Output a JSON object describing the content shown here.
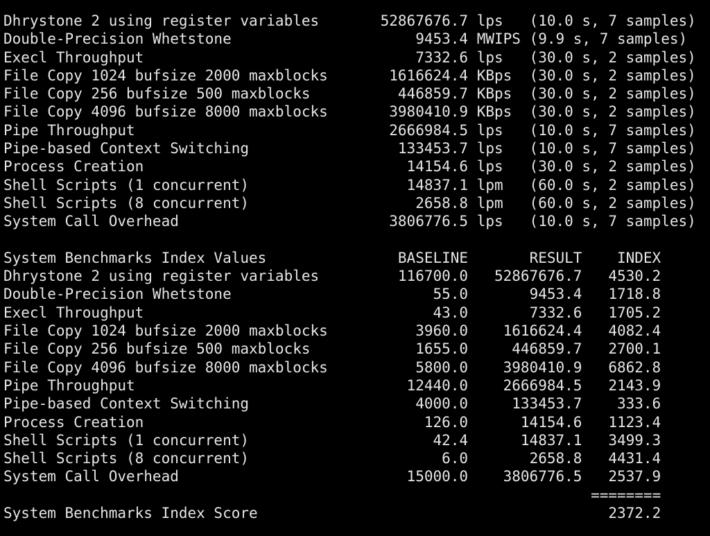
{
  "results": [
    {
      "name": "Dhrystone 2 using register variables",
      "value": "52867676.7",
      "unit": "lps",
      "detail": "(10.0 s, 7 samples)"
    },
    {
      "name": "Double-Precision Whetstone",
      "value": "9453.4",
      "unit": "MWIPS",
      "detail": "(9.9 s, 7 samples)"
    },
    {
      "name": "Execl Throughput",
      "value": "7332.6",
      "unit": "lps",
      "detail": "(30.0 s, 2 samples)"
    },
    {
      "name": "File Copy 1024 bufsize 2000 maxblocks",
      "value": "1616624.4",
      "unit": "KBps",
      "detail": "(30.0 s, 2 samples)"
    },
    {
      "name": "File Copy 256 bufsize 500 maxblocks",
      "value": "446859.7",
      "unit": "KBps",
      "detail": "(30.0 s, 2 samples)"
    },
    {
      "name": "File Copy 4096 bufsize 8000 maxblocks",
      "value": "3980410.9",
      "unit": "KBps",
      "detail": "(30.0 s, 2 samples)"
    },
    {
      "name": "Pipe Throughput",
      "value": "2666984.5",
      "unit": "lps",
      "detail": "(10.0 s, 7 samples)"
    },
    {
      "name": "Pipe-based Context Switching",
      "value": "133453.7",
      "unit": "lps",
      "detail": "(10.0 s, 7 samples)"
    },
    {
      "name": "Process Creation",
      "value": "14154.6",
      "unit": "lps",
      "detail": "(30.0 s, 2 samples)"
    },
    {
      "name": "Shell Scripts (1 concurrent)",
      "value": "14837.1",
      "unit": "lpm",
      "detail": "(60.0 s, 2 samples)"
    },
    {
      "name": "Shell Scripts (8 concurrent)",
      "value": "2658.8",
      "unit": "lpm",
      "detail": "(60.0 s, 2 samples)"
    },
    {
      "name": "System Call Overhead",
      "value": "3806776.5",
      "unit": "lps",
      "detail": "(10.0 s, 7 samples)"
    }
  ],
  "index_header": {
    "title": "System Benchmarks Index Values",
    "baseline": "BASELINE",
    "result": "RESULT",
    "index": "INDEX"
  },
  "index_rows": [
    {
      "name": "Dhrystone 2 using register variables",
      "baseline": "116700.0",
      "result": "52867676.7",
      "index": "4530.2"
    },
    {
      "name": "Double-Precision Whetstone",
      "baseline": "55.0",
      "result": "9453.4",
      "index": "1718.8"
    },
    {
      "name": "Execl Throughput",
      "baseline": "43.0",
      "result": "7332.6",
      "index": "1705.2"
    },
    {
      "name": "File Copy 1024 bufsize 2000 maxblocks",
      "baseline": "3960.0",
      "result": "1616624.4",
      "index": "4082.4"
    },
    {
      "name": "File Copy 256 bufsize 500 maxblocks",
      "baseline": "1655.0",
      "result": "446859.7",
      "index": "2700.1"
    },
    {
      "name": "File Copy 4096 bufsize 8000 maxblocks",
      "baseline": "5800.0",
      "result": "3980410.9",
      "index": "6862.8"
    },
    {
      "name": "Pipe Throughput",
      "baseline": "12440.0",
      "result": "2666984.5",
      "index": "2143.9"
    },
    {
      "name": "Pipe-based Context Switching",
      "baseline": "4000.0",
      "result": "133453.7",
      "index": "333.6"
    },
    {
      "name": "Process Creation",
      "baseline": "126.0",
      "result": "14154.6",
      "index": "1123.4"
    },
    {
      "name": "Shell Scripts (1 concurrent)",
      "baseline": "42.4",
      "result": "14837.1",
      "index": "3499.3"
    },
    {
      "name": "Shell Scripts (8 concurrent)",
      "baseline": "6.0",
      "result": "2658.8",
      "index": "4431.4"
    },
    {
      "name": "System Call Overhead",
      "baseline": "15000.0",
      "result": "3806776.5",
      "index": "2537.9"
    }
  ],
  "separator": "========",
  "score": {
    "label": "System Benchmarks Index Score",
    "value": "2372.2"
  }
}
